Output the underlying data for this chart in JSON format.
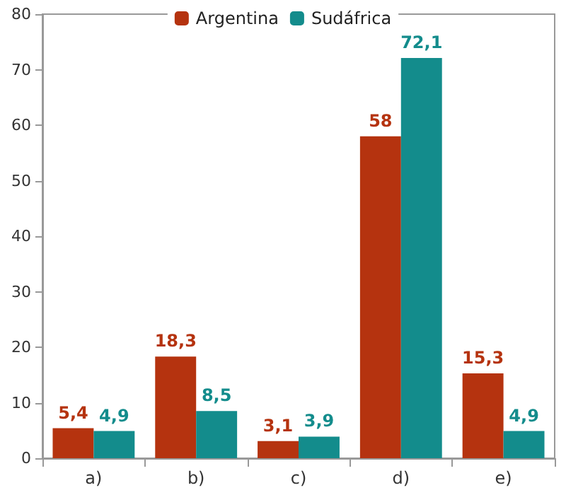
{
  "chart_data": {
    "type": "bar",
    "categories": [
      "a)",
      "b)",
      "c)",
      "d)",
      "e)"
    ],
    "series": [
      {
        "name": "Argentina",
        "color": "#b5330f",
        "values": [
          5.4,
          18.3,
          3.1,
          58,
          15.3
        ],
        "value_labels": [
          "5,4",
          "18,3",
          "3,1",
          "58",
          "15,3"
        ]
      },
      {
        "name": "Sudáfrica",
        "color": "#138c8c",
        "values": [
          4.9,
          8.5,
          3.9,
          72.1,
          4.9
        ],
        "value_labels": [
          "4,9",
          "8,5",
          "3,9",
          "72,1",
          "4,9"
        ]
      }
    ],
    "ylim": [
      0,
      80
    ],
    "yticks": [
      0,
      10,
      20,
      30,
      40,
      50,
      60,
      70,
      80
    ],
    "grid": false,
    "legend": "top"
  }
}
